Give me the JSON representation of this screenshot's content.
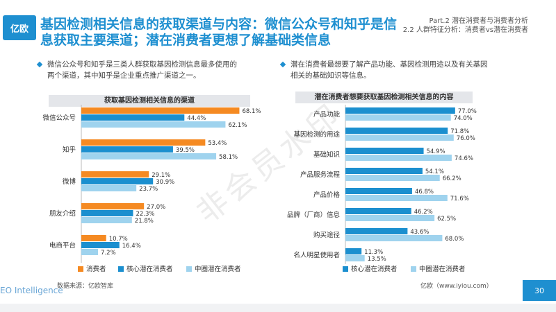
{
  "header": {
    "logo_text": "亿欧",
    "title_line1": "基因检测相关信息的获取渠道与内容：微信公众号和知乎是信",
    "title_line2": "息获取主要渠道；潜在消费者更想了解基础类信息",
    "part_line1": "Part.2 潜在消费者与消费者分析",
    "part_line2": "2.2 人群特征分析：消费者vs潜在消费者"
  },
  "bullets": {
    "left_line1": "微信公众号和知乎是三类人群获取基因检测信息最多使用的",
    "left_line2": "两个渠道，其中知乎是企业重点推广渠道之一。",
    "right_line1": "潜在消费者最想要了解产品功能、基因检测用途以及有关基因",
    "right_line2": "相关的基础知识等信息。"
  },
  "source_left": "数据来源：亿欧智库",
  "source_right": "亿欧（www.iyiou.com）",
  "footer_left": "EO Intelligence",
  "page_number": "30",
  "watermark": "非会员水印",
  "colors": {
    "orange": "#f58a22",
    "blue": "#1b8fcf",
    "light_blue": "#9fd3ee",
    "accent": "#1e8fd0"
  },
  "chart_data": [
    {
      "type": "bar",
      "orientation": "horizontal",
      "title": "获取基因检测相关信息的渠道",
      "categories": [
        "微信公众号",
        "知乎",
        "微博",
        "朋友介绍",
        "电商平台"
      ],
      "series": [
        {
          "name": "消费者",
          "color": "#f58a22",
          "values": [
            68.1,
            53.4,
            29.1,
            27.0,
            10.7
          ]
        },
        {
          "name": "核心潜在消费者",
          "color": "#1b8fcf",
          "values": [
            44.4,
            39.5,
            30.9,
            22.3,
            16.4
          ]
        },
        {
          "name": "中圈潜在消费者",
          "color": "#9fd3ee",
          "values": [
            62.1,
            58.1,
            23.7,
            21.8,
            7.2
          ]
        }
      ],
      "value_suffix": "%",
      "legend": "bottom"
    },
    {
      "type": "bar",
      "orientation": "horizontal",
      "title": "潜在消费者想要获取基因检测相关信息的内容",
      "categories": [
        "产品功能",
        "基因检测的用途",
        "基础知识",
        "产品服务流程",
        "产品价格",
        "品牌（厂商）信息",
        "购买途径",
        "名人明星使用者"
      ],
      "series": [
        {
          "name": "核心潜在消费者",
          "color": "#1b8fcf",
          "values": [
            77.0,
            71.8,
            54.9,
            54.1,
            46.8,
            46.2,
            43.6,
            11.3
          ]
        },
        {
          "name": "中圈潜在消费者",
          "color": "#9fd3ee",
          "values": [
            74.0,
            76.0,
            74.6,
            66.2,
            71.6,
            62.5,
            68.0,
            13.5
          ]
        }
      ],
      "value_suffix": "%",
      "legend": "bottom"
    }
  ]
}
